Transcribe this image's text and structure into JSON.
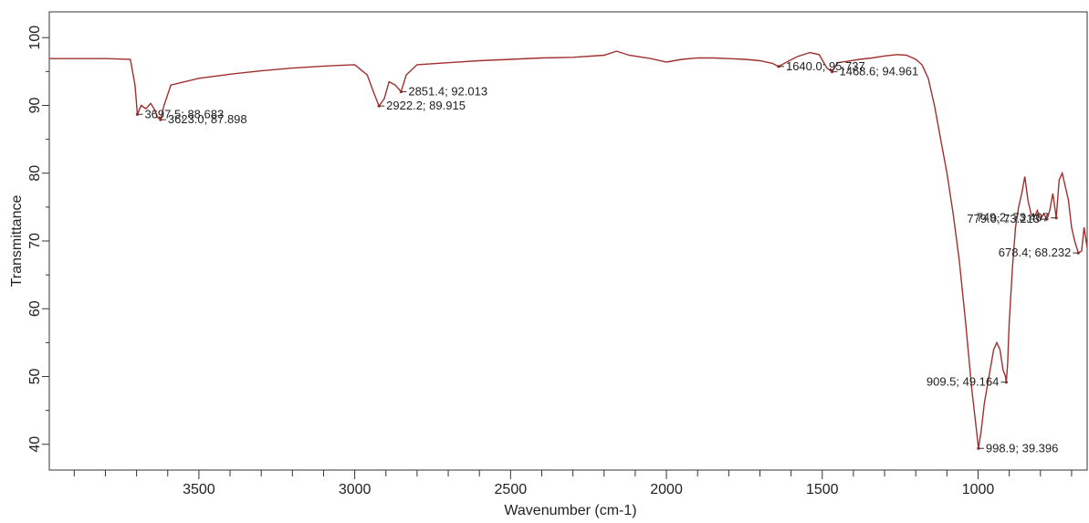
{
  "chart_data": {
    "type": "line",
    "title": "",
    "xlabel": "Wavenumber (cm-1)",
    "ylabel": "Transmittance",
    "xlim": [
      3980,
      650
    ],
    "ylim": [
      36.2,
      103.8
    ],
    "x_ticks": [
      "3500",
      "3000",
      "2500",
      "2000",
      "1500",
      "1000"
    ],
    "y_ticks": [
      "40",
      "50",
      "60",
      "70",
      "80",
      "90",
      "100"
    ],
    "grid": false,
    "legend": "none",
    "line_color": "#a0302f",
    "series": [
      {
        "x": [
          3980,
          3800,
          3720,
          3705,
          3697.5,
          3685,
          3670,
          3655,
          3645,
          3632,
          3623.0,
          3612,
          3590,
          3500,
          3400,
          3300,
          3200,
          3100,
          3000,
          2960,
          2940,
          2922.2,
          2905,
          2890,
          2870,
          2851.4,
          2835,
          2800,
          2700,
          2600,
          2500,
          2400,
          2300,
          2200,
          2160,
          2120,
          2050,
          2000,
          1950,
          1900,
          1850,
          1800,
          1750,
          1700,
          1660,
          1640.0,
          1610,
          1580,
          1540,
          1510,
          1485,
          1468.6,
          1450,
          1420,
          1380,
          1340,
          1300,
          1260,
          1230,
          1200,
          1180,
          1160,
          1140,
          1120,
          1100,
          1080,
          1060,
          1040,
          1020,
          1005,
          998.9,
          990,
          980,
          965,
          950,
          940,
          930,
          920,
          912,
          909.5,
          905,
          900,
          890,
          880,
          870,
          860,
          850,
          840,
          830,
          820,
          810,
          800,
          790,
          779.0,
          770,
          760,
          749.2,
          740,
          730,
          720,
          710,
          700,
          690,
          678.4,
          668,
          660,
          650
        ],
        "y": [
          96.9,
          96.9,
          96.8,
          93,
          88.683,
          90,
          89.5,
          90.3,
          89.6,
          88.2,
          87.898,
          90,
          93,
          94,
          94.6,
          95.1,
          95.5,
          95.8,
          96,
          94.5,
          92,
          89.915,
          91,
          93.5,
          93,
          92.013,
          94.5,
          96,
          96.3,
          96.6,
          96.8,
          97,
          97.1,
          97.4,
          98,
          97.4,
          96.9,
          96.4,
          96.8,
          97,
          97,
          96.9,
          96.8,
          96.6,
          96.2,
          95.737,
          96.5,
          97.2,
          97.8,
          97.5,
          95.5,
          94.961,
          96.3,
          96.5,
          96.8,
          97,
          97.3,
          97.5,
          97.4,
          96.8,
          96,
          94,
          90,
          85,
          80,
          74,
          67,
          58,
          48,
          42,
          39.396,
          42,
          46,
          50,
          54,
          55,
          54,
          51,
          50,
          49.164,
          52,
          58,
          66,
          72,
          75,
          77,
          79.5,
          76,
          74,
          73.5,
          74.5,
          73.2,
          74,
          73.213,
          74.5,
          77,
          73.407,
          79,
          80,
          78,
          76,
          72,
          70,
          68.232,
          68.5,
          72,
          69
        ]
      }
    ],
    "annotations": [
      {
        "label": "3697.5; 88.683",
        "x": 3697.5,
        "y": 88.683,
        "side": "right"
      },
      {
        "label": "3623.0; 87.898",
        "x": 3623.0,
        "y": 87.898,
        "side": "right"
      },
      {
        "label": "2922.2; 89.915",
        "x": 2922.2,
        "y": 89.915,
        "side": "right"
      },
      {
        "label": "2851.4; 92.013",
        "x": 2851.4,
        "y": 92.013,
        "side": "right"
      },
      {
        "label": "1640.0; 95.737",
        "x": 1640.0,
        "y": 95.737,
        "side": "right"
      },
      {
        "label": "1468.6; 94.961",
        "x": 1468.6,
        "y": 94.961,
        "side": "right"
      },
      {
        "label": "749.2; 73.407",
        "x": 749.2,
        "y": 73.407,
        "side": "left"
      },
      {
        "label": "779.0; 73.213",
        "x": 779.0,
        "y": 73.213,
        "side": "left"
      },
      {
        "label": "678.4; 68.232",
        "x": 678.4,
        "y": 68.232,
        "side": "left"
      },
      {
        "label": "909.5; 49.164",
        "x": 909.5,
        "y": 49.164,
        "side": "left"
      },
      {
        "label": "998.9; 39.396",
        "x": 998.9,
        "y": 39.396,
        "side": "right"
      }
    ]
  }
}
